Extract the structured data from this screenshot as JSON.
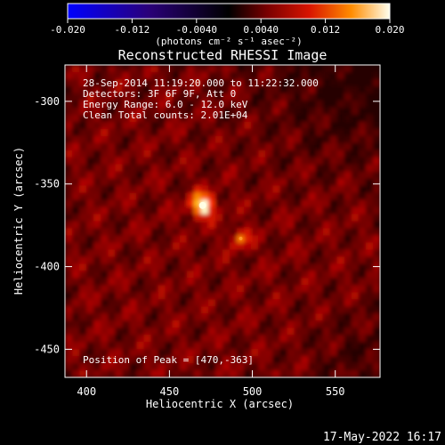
{
  "chart_data": {
    "type": "heatmap",
    "title": "Reconstructed RHESSI Image",
    "xlabel": "Heliocentric X (arcsec)",
    "ylabel": "Heliocentric Y (arcsec)",
    "xlim": [
      387,
      577
    ],
    "ylim": [
      -467,
      -278
    ],
    "x_ticks": [
      400,
      450,
      500,
      550
    ],
    "y_ticks": [
      -300,
      -350,
      -400,
      -450
    ],
    "colorbar": {
      "min": -0.02,
      "max": 0.02,
      "ticks": [
        "-0.020",
        "-0.012",
        "-0.0040",
        "0.0040",
        "0.012",
        "0.020"
      ],
      "unit_label": "(photons cm⁻² s⁻¹ asec⁻²)"
    },
    "annotations": [
      "28-Sep-2014 11:19:20.000 to 11:22:32.000",
      "Detectors: 3F 6F 9F, Att 0",
      "Energy Range: 6.0 - 12.0 keV",
      "Clean    Total counts: 2.01E+04"
    ],
    "peak_label": "Position of Peak = [470,-363]",
    "sources": [
      {
        "x": 470,
        "y": -363,
        "value": 0.02
      },
      {
        "x": 493,
        "y": -383,
        "value": 0.012
      }
    ]
  },
  "footer": {
    "timestamp": "17-May-2022 16:17"
  }
}
